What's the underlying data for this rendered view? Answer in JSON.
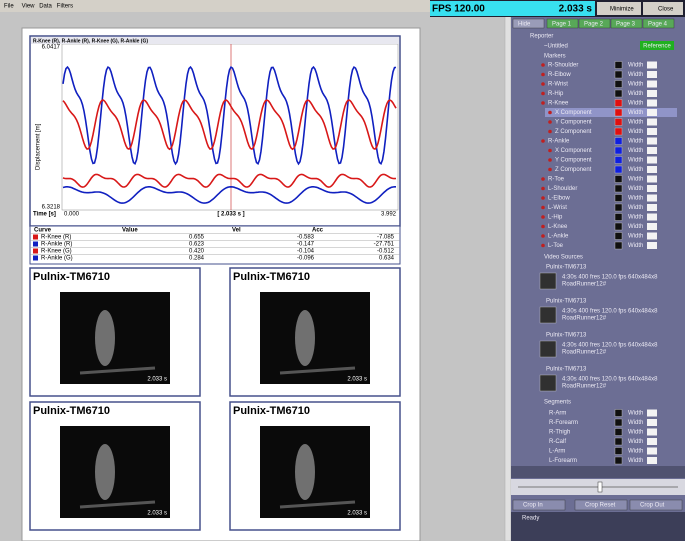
{
  "menu": [
    "File",
    "View",
    "Data",
    "Filters"
  ],
  "toolbar": {
    "fps": "FPS 120.00",
    "time": "2.033 s",
    "minimize": "Minimize",
    "close": "Close"
  },
  "chart": {
    "title": "R-Knee (R), R-Ankle (R), R-Knee (G), R-Ankle (G)",
    "y_label": "Displacement [m]",
    "y_max": "6.0417",
    "y_min": "6.3218",
    "x_label": "Time [s]",
    "x_start": "0.000",
    "cursor": "[ 2.033 s ]",
    "x_end": "3.992"
  },
  "table": {
    "headers": [
      "Curve",
      "Value",
      "Vel",
      "Acc"
    ],
    "rows": [
      [
        "R-Knee (R)",
        "0.655",
        "-0.583",
        "-7.085"
      ],
      [
        "R-Ankle (R)",
        "0.623",
        "-0.147",
        "-27.751"
      ],
      [
        "R-Knee (G)",
        "0.420",
        "-0.104",
        "-0.512"
      ],
      [
        "R-Ankle (G)",
        "0.284",
        "-0.096",
        "0.634"
      ]
    ]
  },
  "videos": [
    {
      "title": "Pulnix-TM6710",
      "time": "2.033 s"
    },
    {
      "title": "Pulnix-TM6710",
      "time": "2.033 s"
    },
    {
      "title": "Pulnix-TM6710",
      "time": "2.033 s"
    },
    {
      "title": "Pulnix-TM6710",
      "time": "2.033 s"
    }
  ],
  "panel": {
    "tabs": [
      "Hide",
      "Page 1",
      "Page 2",
      "Page 3",
      "Page 4"
    ],
    "root": "Reporter",
    "doc": "~Untitled",
    "reference": "Reference",
    "markers": "Markers",
    "width": "Width",
    "marker_items": [
      {
        "name": "R-Shoulder"
      },
      {
        "name": "R-Elbow"
      },
      {
        "name": "R-Wrist"
      },
      {
        "name": "R-Hip"
      },
      {
        "name": "R-Knee",
        "components": [
          "X Component",
          "Y Component",
          "Z Component"
        ]
      },
      {
        "name": "R-Ankle",
        "components": [
          "X Component",
          "Y Component",
          "Z Component"
        ]
      },
      {
        "name": "R-Toe"
      },
      {
        "name": "L-Shoulder"
      },
      {
        "name": "L-Elbow"
      },
      {
        "name": "L-Wrist"
      },
      {
        "name": "L-Hip"
      },
      {
        "name": "L-Knee"
      },
      {
        "name": "L-Ankle"
      },
      {
        "name": "L-Toe"
      }
    ],
    "video_sources": "Video Sources",
    "sources": [
      {
        "name": "Pulnix-TM6713",
        "info": "4:30s 400 fres 120.0 fps 640x484x8",
        "file": "RoadRunner12#"
      },
      {
        "name": "Pulnix-TM6713",
        "info": "4:30s 400 fres 120.0 fps 640x484x8",
        "file": "RoadRunner12#"
      },
      {
        "name": "Pulnix-TM6713",
        "info": "4:30s 400 fres 120.0 fps 640x484x8",
        "file": "RoadRunner12#"
      },
      {
        "name": "Pulnix-TM6713",
        "info": "4:30s 400 fres 120.0 fps 640x484x8",
        "file": "RoadRunner12#"
      }
    ],
    "segments": "Segments",
    "segment_items": [
      "R-Arm",
      "R-Forearm",
      "R-Thigh",
      "R-Calf",
      "L-Arm",
      "L-Forearm"
    ],
    "crop_in": "Crop In",
    "crop_reset": "Crop Reset",
    "crop_out": "Crop Out",
    "status": "Ready"
  }
}
